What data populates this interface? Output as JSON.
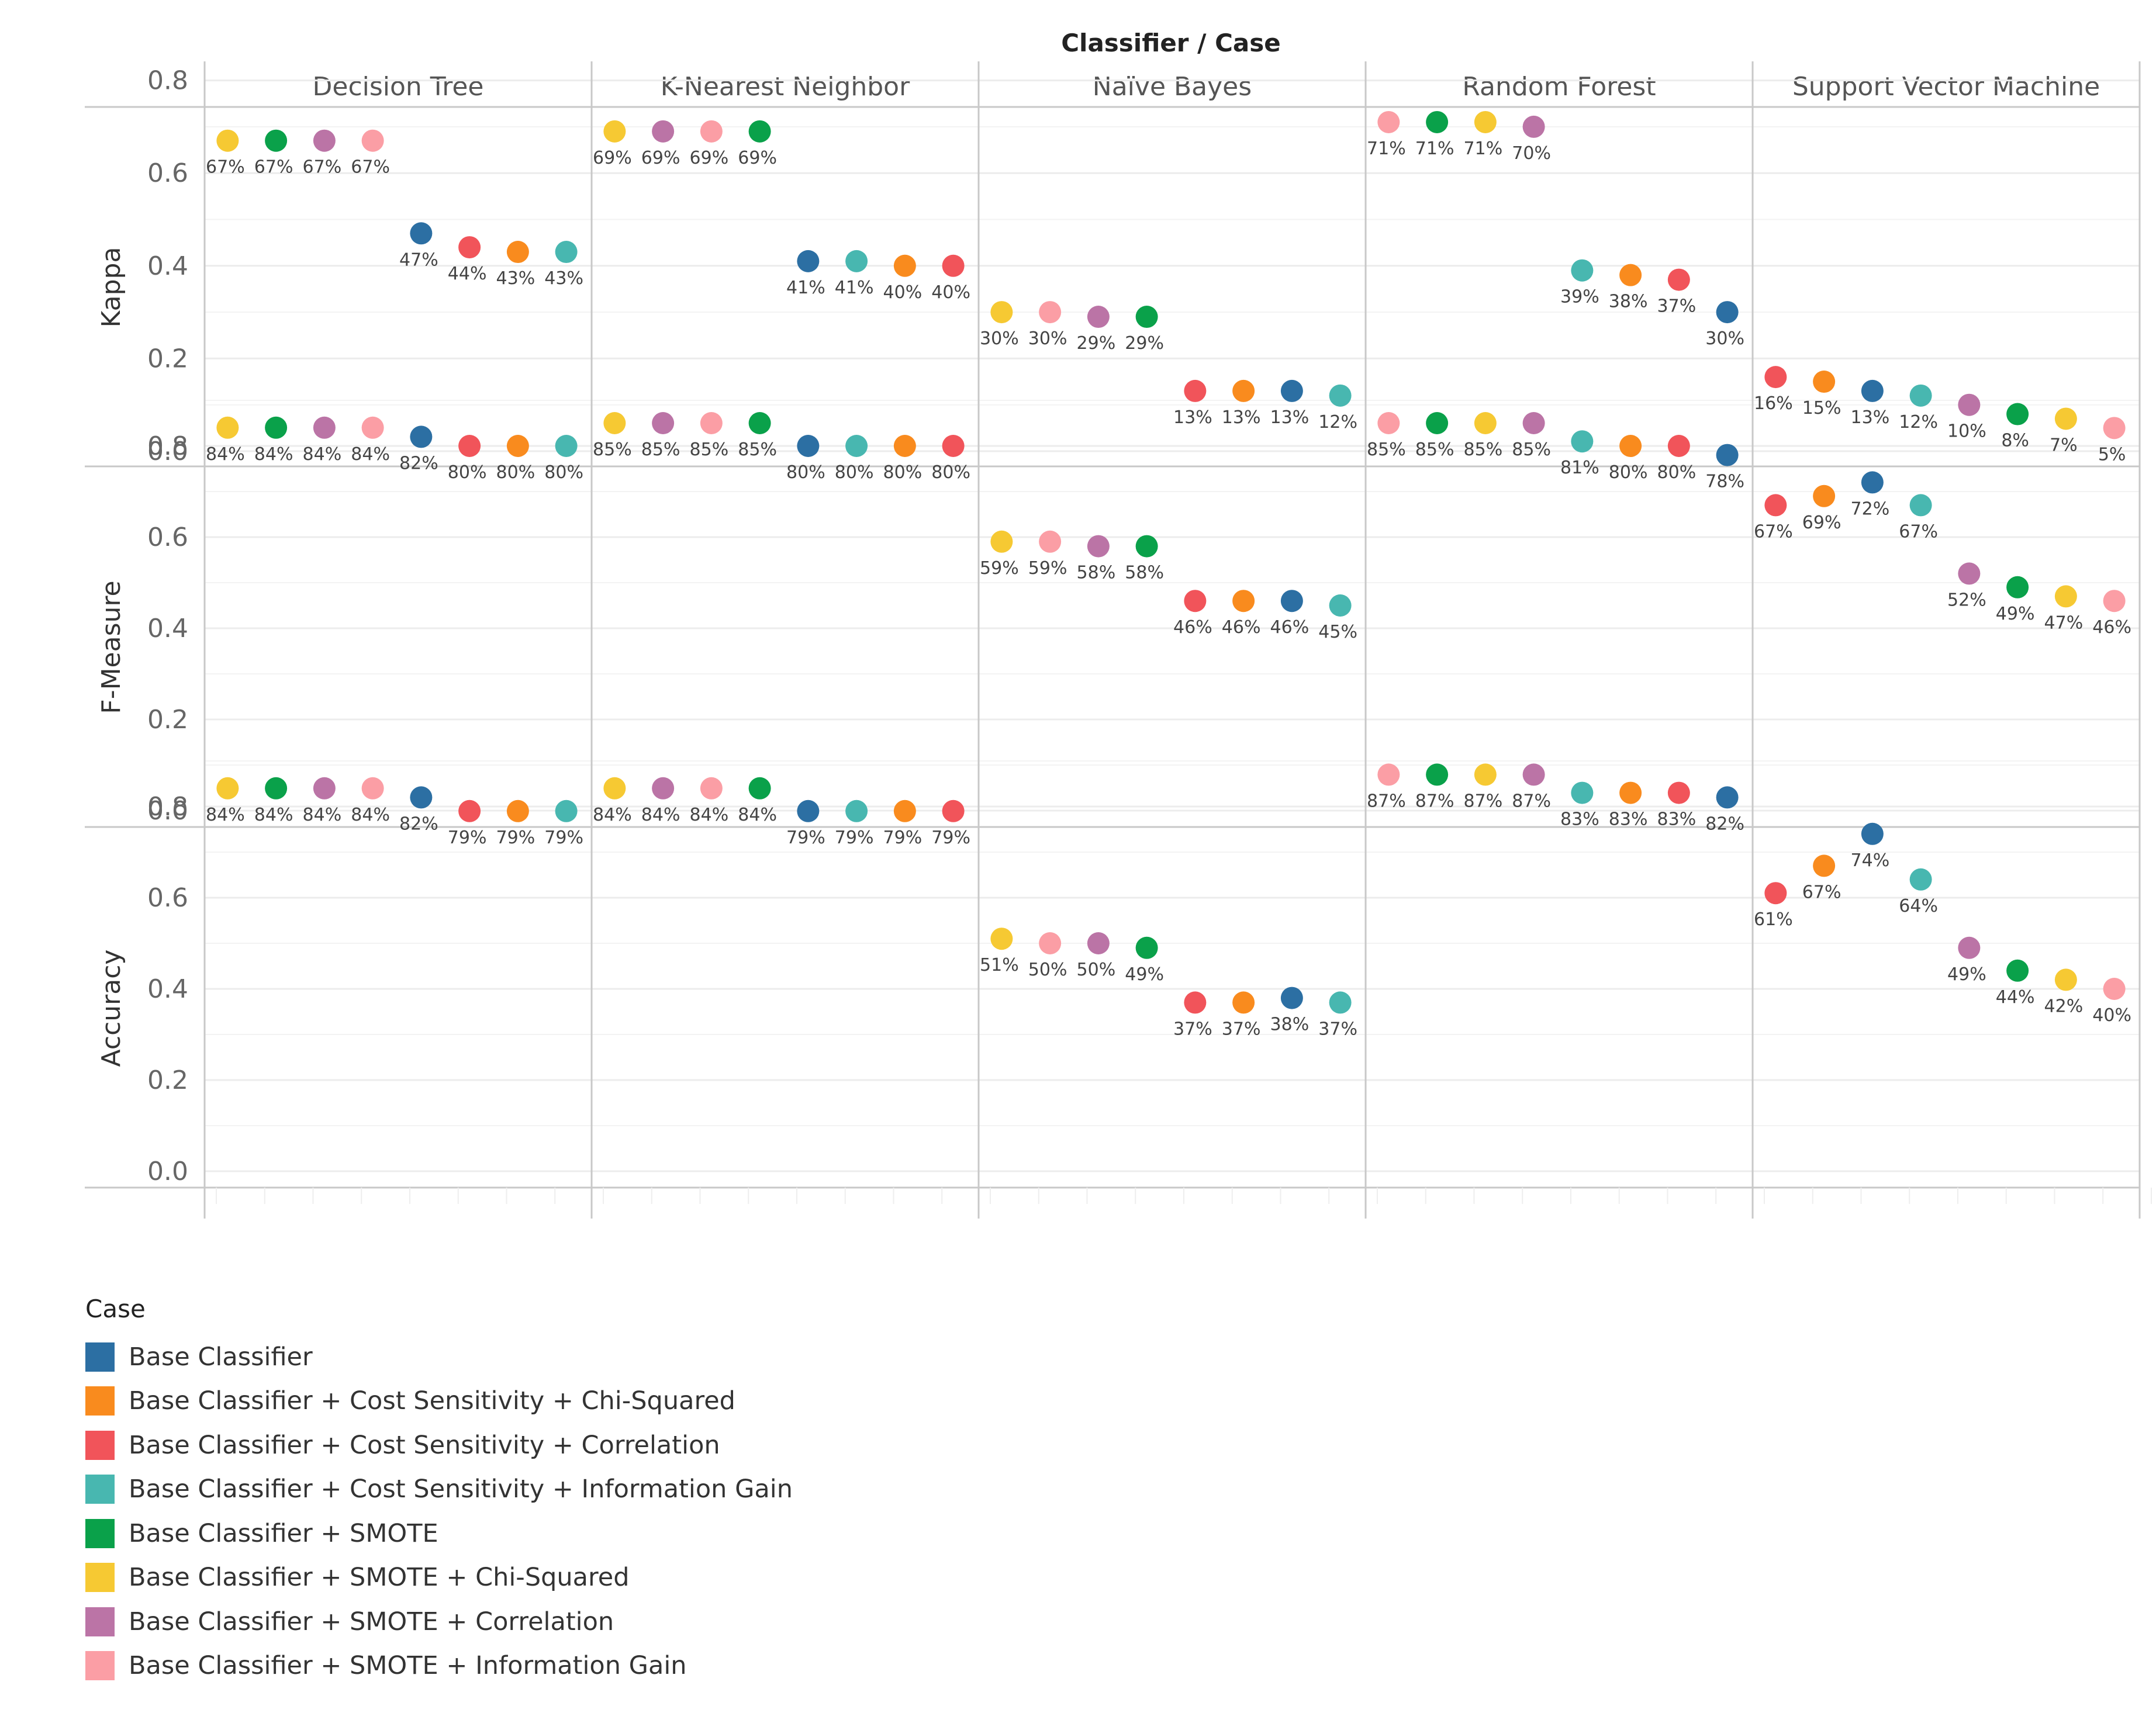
{
  "chart_data": {
    "type": "scatter",
    "title": "Classifier / Case",
    "classifiers": [
      "Decision Tree",
      "K-Nearest Neighbor",
      "Naïve Bayes",
      "Random Forest",
      "Support Vector Machine"
    ],
    "yticks": [
      "0.0",
      "0.2",
      "0.4",
      "0.6",
      "0.8"
    ],
    "legend": {
      "title": "Case",
      "entries": [
        {
          "name": "Base Classifier",
          "color": "#2c6fa3"
        },
        {
          "name": "Base Classifier + Cost Sensitivity + Chi-Squared",
          "color": "#f98b1e"
        },
        {
          "name": "Base Classifier + Cost Sensitivity + Correlation",
          "color": "#f1545a"
        },
        {
          "name": "Base Classifier + Cost Sensitivity + Information Gain",
          "color": "#48b7b0"
        },
        {
          "name": "Base Classifier + SMOTE",
          "color": "#0aa14a"
        },
        {
          "name": "Base Classifier + SMOTE + Chi-Squared",
          "color": "#f6c933"
        },
        {
          "name": "Base Classifier + SMOTE + Correlation",
          "color": "#bb74a6"
        },
        {
          "name": "Base Classifier + SMOTE + Information Gain",
          "color": "#fb9ea5"
        }
      ]
    },
    "metrics": [
      {
        "name": "Kappa",
        "ylim": [
          0,
          0.78
        ],
        "panels": [
          {
            "classifier": "Decision Tree",
            "points": [
              {
                "case": 5,
                "value": 0.67,
                "label": "67%"
              },
              {
                "case": 4,
                "value": 0.67,
                "label": "67%"
              },
              {
                "case": 6,
                "value": 0.67,
                "label": "67%"
              },
              {
                "case": 7,
                "value": 0.67,
                "label": "67%"
              },
              {
                "case": 0,
                "value": 0.47,
                "label": "47%"
              },
              {
                "case": 2,
                "value": 0.44,
                "label": "44%"
              },
              {
                "case": 1,
                "value": 0.43,
                "label": "43%"
              },
              {
                "case": 3,
                "value": 0.43,
                "label": "43%"
              }
            ]
          },
          {
            "classifier": "K-Nearest Neighbor",
            "points": [
              {
                "case": 5,
                "value": 0.69,
                "label": "69%"
              },
              {
                "case": 6,
                "value": 0.69,
                "label": "69%"
              },
              {
                "case": 7,
                "value": 0.69,
                "label": "69%"
              },
              {
                "case": 4,
                "value": 0.69,
                "label": "69%"
              },
              {
                "case": 0,
                "value": 0.41,
                "label": "41%"
              },
              {
                "case": 3,
                "value": 0.41,
                "label": "41%"
              },
              {
                "case": 1,
                "value": 0.4,
                "label": "40%"
              },
              {
                "case": 2,
                "value": 0.4,
                "label": "40%"
              }
            ]
          },
          {
            "classifier": "Naïve Bayes",
            "points": [
              {
                "case": 5,
                "value": 0.3,
                "label": "30%"
              },
              {
                "case": 7,
                "value": 0.3,
                "label": "30%"
              },
              {
                "case": 6,
                "value": 0.29,
                "label": "29%"
              },
              {
                "case": 4,
                "value": 0.29,
                "label": "29%"
              },
              {
                "case": 2,
                "value": 0.13,
                "label": "13%"
              },
              {
                "case": 1,
                "value": 0.13,
                "label": "13%"
              },
              {
                "case": 0,
                "value": 0.13,
                "label": "13%"
              },
              {
                "case": 3,
                "value": 0.12,
                "label": "12%"
              }
            ]
          },
          {
            "classifier": "Random Forest",
            "points": [
              {
                "case": 7,
                "value": 0.71,
                "label": "71%"
              },
              {
                "case": 4,
                "value": 0.71,
                "label": "71%"
              },
              {
                "case": 5,
                "value": 0.71,
                "label": "71%"
              },
              {
                "case": 6,
                "value": 0.7,
                "label": "70%"
              },
              {
                "case": 3,
                "value": 0.39,
                "label": "39%"
              },
              {
                "case": 1,
                "value": 0.38,
                "label": "38%"
              },
              {
                "case": 2,
                "value": 0.37,
                "label": "37%"
              },
              {
                "case": 0,
                "value": 0.3,
                "label": "30%"
              }
            ]
          },
          {
            "classifier": "Support Vector Machine",
            "points": [
              {
                "case": 2,
                "value": 0.16,
                "label": "16%"
              },
              {
                "case": 1,
                "value": 0.15,
                "label": "15%"
              },
              {
                "case": 0,
                "value": 0.13,
                "label": "13%"
              },
              {
                "case": 3,
                "value": 0.12,
                "label": "12%"
              },
              {
                "case": 6,
                "value": 0.1,
                "label": "10%"
              },
              {
                "case": 4,
                "value": 0.08,
                "label": "8%"
              },
              {
                "case": 5,
                "value": 0.07,
                "label": "7%"
              },
              {
                "case": 7,
                "value": 0.05,
                "label": "5%"
              }
            ]
          }
        ]
      },
      {
        "name": "F-Measure",
        "ylim": [
          0,
          0.92
        ],
        "panels": [
          {
            "classifier": "Decision Tree",
            "points": [
              {
                "case": 5,
                "value": 0.84,
                "label": "84%"
              },
              {
                "case": 4,
                "value": 0.84,
                "label": "84%"
              },
              {
                "case": 6,
                "value": 0.84,
                "label": "84%"
              },
              {
                "case": 7,
                "value": 0.84,
                "label": "84%"
              },
              {
                "case": 0,
                "value": 0.82,
                "label": "82%"
              },
              {
                "case": 2,
                "value": 0.8,
                "label": "80%"
              },
              {
                "case": 1,
                "value": 0.8,
                "label": "80%"
              },
              {
                "case": 3,
                "value": 0.8,
                "label": "80%"
              }
            ]
          },
          {
            "classifier": "K-Nearest Neighbor",
            "points": [
              {
                "case": 5,
                "value": 0.85,
                "label": "85%"
              },
              {
                "case": 6,
                "value": 0.85,
                "label": "85%"
              },
              {
                "case": 7,
                "value": 0.85,
                "label": "85%"
              },
              {
                "case": 4,
                "value": 0.85,
                "label": "85%"
              },
              {
                "case": 0,
                "value": 0.8,
                "label": "80%"
              },
              {
                "case": 3,
                "value": 0.8,
                "label": "80%"
              },
              {
                "case": 1,
                "value": 0.8,
                "label": "80%"
              },
              {
                "case": 2,
                "value": 0.8,
                "label": "80%"
              }
            ]
          },
          {
            "classifier": "Naïve Bayes",
            "points": [
              {
                "case": 5,
                "value": 0.59,
                "label": "59%"
              },
              {
                "case": 7,
                "value": 0.59,
                "label": "59%"
              },
              {
                "case": 6,
                "value": 0.58,
                "label": "58%"
              },
              {
                "case": 4,
                "value": 0.58,
                "label": "58%"
              },
              {
                "case": 2,
                "value": 0.46,
                "label": "46%"
              },
              {
                "case": 1,
                "value": 0.46,
                "label": "46%"
              },
              {
                "case": 0,
                "value": 0.46,
                "label": "46%"
              },
              {
                "case": 3,
                "value": 0.45,
                "label": "45%"
              }
            ]
          },
          {
            "classifier": "Random Forest",
            "points": [
              {
                "case": 7,
                "value": 0.85,
                "label": "85%"
              },
              {
                "case": 4,
                "value": 0.85,
                "label": "85%"
              },
              {
                "case": 5,
                "value": 0.85,
                "label": "85%"
              },
              {
                "case": 6,
                "value": 0.85,
                "label": "85%"
              },
              {
                "case": 3,
                "value": 0.81,
                "label": "81%"
              },
              {
                "case": 1,
                "value": 0.8,
                "label": "80%"
              },
              {
                "case": 2,
                "value": 0.8,
                "label": "80%"
              },
              {
                "case": 0,
                "value": 0.78,
                "label": "78%"
              }
            ]
          },
          {
            "classifier": "Support Vector Machine",
            "points": [
              {
                "case": 2,
                "value": 0.67,
                "label": "67%"
              },
              {
                "case": 1,
                "value": 0.69,
                "label": "69%"
              },
              {
                "case": 0,
                "value": 0.72,
                "label": "72%"
              },
              {
                "case": 3,
                "value": 0.67,
                "label": "67%"
              },
              {
                "case": 6,
                "value": 0.52,
                "label": "52%"
              },
              {
                "case": 4,
                "value": 0.49,
                "label": "49%"
              },
              {
                "case": 5,
                "value": 0.47,
                "label": "47%"
              },
              {
                "case": 7,
                "value": 0.46,
                "label": "46%"
              }
            ]
          }
        ]
      },
      {
        "name": "Accuracy",
        "ylim": [
          0,
          0.94
        ],
        "panels": [
          {
            "classifier": "Decision Tree",
            "points": [
              {
                "case": 5,
                "value": 0.84,
                "label": "84%"
              },
              {
                "case": 4,
                "value": 0.84,
                "label": "84%"
              },
              {
                "case": 6,
                "value": 0.84,
                "label": "84%"
              },
              {
                "case": 7,
                "value": 0.84,
                "label": "84%"
              },
              {
                "case": 0,
                "value": 0.82,
                "label": "82%"
              },
              {
                "case": 2,
                "value": 0.79,
                "label": "79%"
              },
              {
                "case": 1,
                "value": 0.79,
                "label": "79%"
              },
              {
                "case": 3,
                "value": 0.79,
                "label": "79%"
              }
            ]
          },
          {
            "classifier": "K-Nearest Neighbor",
            "points": [
              {
                "case": 5,
                "value": 0.84,
                "label": "84%"
              },
              {
                "case": 6,
                "value": 0.84,
                "label": "84%"
              },
              {
                "case": 7,
                "value": 0.84,
                "label": "84%"
              },
              {
                "case": 4,
                "value": 0.84,
                "label": "84%"
              },
              {
                "case": 0,
                "value": 0.79,
                "label": "79%"
              },
              {
                "case": 3,
                "value": 0.79,
                "label": "79%"
              },
              {
                "case": 1,
                "value": 0.79,
                "label": "79%"
              },
              {
                "case": 2,
                "value": 0.79,
                "label": "79%"
              }
            ]
          },
          {
            "classifier": "Naïve Bayes",
            "points": [
              {
                "case": 5,
                "value": 0.51,
                "label": "51%"
              },
              {
                "case": 7,
                "value": 0.5,
                "label": "50%"
              },
              {
                "case": 6,
                "value": 0.5,
                "label": "50%"
              },
              {
                "case": 4,
                "value": 0.49,
                "label": "49%"
              },
              {
                "case": 2,
                "value": 0.37,
                "label": "37%"
              },
              {
                "case": 1,
                "value": 0.37,
                "label": "37%"
              },
              {
                "case": 0,
                "value": 0.38,
                "label": "38%"
              },
              {
                "case": 3,
                "value": 0.37,
                "label": "37%"
              }
            ]
          },
          {
            "classifier": "Random Forest",
            "points": [
              {
                "case": 7,
                "value": 0.87,
                "label": "87%"
              },
              {
                "case": 4,
                "value": 0.87,
                "label": "87%"
              },
              {
                "case": 5,
                "value": 0.87,
                "label": "87%"
              },
              {
                "case": 6,
                "value": 0.87,
                "label": "87%"
              },
              {
                "case": 3,
                "value": 0.83,
                "label": "83%"
              },
              {
                "case": 1,
                "value": 0.83,
                "label": "83%"
              },
              {
                "case": 2,
                "value": 0.83,
                "label": "83%"
              },
              {
                "case": 0,
                "value": 0.82,
                "label": "82%"
              }
            ]
          },
          {
            "classifier": "Support Vector Machine",
            "points": [
              {
                "case": 2,
                "value": 0.61,
                "label": "61%"
              },
              {
                "case": 1,
                "value": 0.67,
                "label": "67%"
              },
              {
                "case": 0,
                "value": 0.74,
                "label": "74%"
              },
              {
                "case": 3,
                "value": 0.64,
                "label": "64%"
              },
              {
                "case": 6,
                "value": 0.49,
                "label": "49%"
              },
              {
                "case": 4,
                "value": 0.44,
                "label": "44%"
              },
              {
                "case": 5,
                "value": 0.42,
                "label": "42%"
              },
              {
                "case": 7,
                "value": 0.4,
                "label": "40%"
              }
            ]
          }
        ]
      }
    ]
  }
}
